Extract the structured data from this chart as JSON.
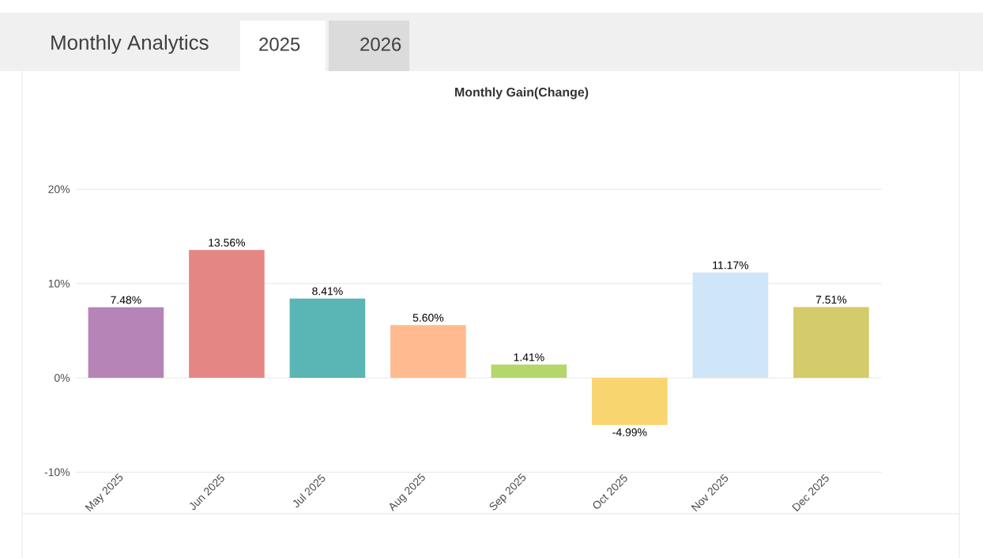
{
  "chart_data": {
    "type": "bar",
    "title": "Monthly Gain(Change)",
    "annotations": [
      "Monthly Analytics",
      "2025",
      "2026"
    ],
    "categories": [
      "May 2025",
      "Jun 2025",
      "Jul 2025",
      "Aug 2025",
      "Sep 2025",
      "Oct 2025",
      "Nov 2025",
      "Dec 2025"
    ],
    "values": [
      7.48,
      13.56,
      8.41,
      5.6,
      1.41,
      -4.99,
      11.17,
      7.51
    ],
    "value_labels": [
      "7.48%",
      "13.56%",
      "8.41%",
      "5.60%",
      "1.41%",
      "-4.99%",
      "11.17%",
      "7.51%"
    ],
    "colors": [
      "#b784b7",
      "#e48784",
      "#5ab5b5",
      "#ffbb8f",
      "#b4d76b",
      "#f8d56f",
      "#cfe5f8",
      "#d4cb6a"
    ],
    "ylim": [
      -10,
      20
    ],
    "yticks": [
      {
        "value": -10,
        "label": "-10%"
      },
      {
        "value": 0,
        "label": "0%"
      },
      {
        "value": 10,
        "label": "10%"
      },
      {
        "value": 20,
        "label": "20%"
      }
    ],
    "grid": "y"
  }
}
